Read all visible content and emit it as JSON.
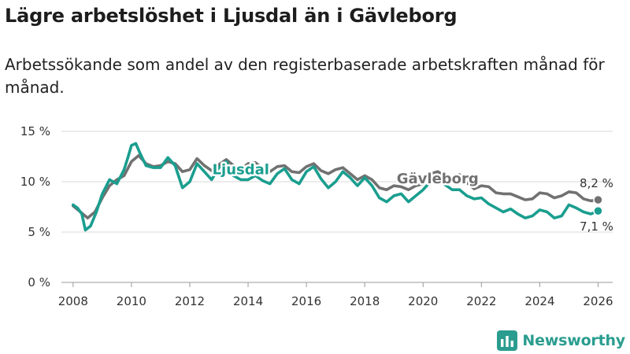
{
  "chart_data": {
    "type": "line",
    "title": "Lägre arbetslöshet i Ljusdal än i Gävleborg",
    "subtitle": "Arbetssökande som andel av den registerbaserade arbetskraften månad för månad.",
    "xlabel": "",
    "ylabel": "",
    "xlim": [
      2007.6,
      2026.5
    ],
    "ylim": [
      0,
      15
    ],
    "yticks": [
      {
        "value": 0,
        "label": "0 %"
      },
      {
        "value": 5,
        "label": "5 %"
      },
      {
        "value": 10,
        "label": "10 %"
      },
      {
        "value": 15,
        "label": "15 %"
      }
    ],
    "xticks": [
      {
        "value": 2008,
        "label": "2008"
      },
      {
        "value": 2010,
        "label": "2010"
      },
      {
        "value": 2012,
        "label": "2012"
      },
      {
        "value": 2014,
        "label": "2014"
      },
      {
        "value": 2016,
        "label": "2016"
      },
      {
        "value": 2018,
        "label": "2018"
      },
      {
        "value": 2020,
        "label": "2020"
      },
      {
        "value": 2022,
        "label": "2022"
      },
      {
        "value": 2024,
        "label": "2024"
      },
      {
        "value": 2026,
        "label": "2026"
      }
    ],
    "grid": true,
    "series": [
      {
        "name": "Gävleborg",
        "color": "#717171",
        "end_label": "8,2 %",
        "points": [
          [
            2008.0,
            7.6
          ],
          [
            2008.25,
            7.0
          ],
          [
            2008.5,
            6.4
          ],
          [
            2008.75,
            7.0
          ],
          [
            2009.0,
            8.4
          ],
          [
            2009.25,
            9.6
          ],
          [
            2009.5,
            10.2
          ],
          [
            2009.75,
            10.6
          ],
          [
            2010.0,
            12.0
          ],
          [
            2010.25,
            12.6
          ],
          [
            2010.5,
            11.8
          ],
          [
            2010.75,
            11.5
          ],
          [
            2011.0,
            11.6
          ],
          [
            2011.25,
            12.0
          ],
          [
            2011.5,
            11.8
          ],
          [
            2011.75,
            11.0
          ],
          [
            2012.0,
            11.2
          ],
          [
            2012.25,
            12.3
          ],
          [
            2012.5,
            11.6
          ],
          [
            2012.75,
            11.1
          ],
          [
            2013.0,
            11.7
          ],
          [
            2013.25,
            12.2
          ],
          [
            2013.5,
            11.6
          ],
          [
            2013.75,
            11.2
          ],
          [
            2014.0,
            11.8
          ],
          [
            2014.25,
            11.9
          ],
          [
            2014.5,
            11.3
          ],
          [
            2014.75,
            11.0
          ],
          [
            2015.0,
            11.5
          ],
          [
            2015.25,
            11.6
          ],
          [
            2015.5,
            11.0
          ],
          [
            2015.75,
            10.9
          ],
          [
            2016.0,
            11.5
          ],
          [
            2016.25,
            11.8
          ],
          [
            2016.5,
            11.1
          ],
          [
            2016.75,
            10.8
          ],
          [
            2017.0,
            11.2
          ],
          [
            2017.25,
            11.4
          ],
          [
            2017.5,
            10.8
          ],
          [
            2017.75,
            10.2
          ],
          [
            2018.0,
            10.6
          ],
          [
            2018.25,
            10.2
          ],
          [
            2018.5,
            9.4
          ],
          [
            2018.75,
            9.2
          ],
          [
            2019.0,
            9.6
          ],
          [
            2019.25,
            9.5
          ],
          [
            2019.5,
            9.2
          ],
          [
            2019.75,
            9.6
          ],
          [
            2020.0,
            9.8
          ],
          [
            2020.25,
            10.8
          ],
          [
            2020.5,
            11.0
          ],
          [
            2020.75,
            10.6
          ],
          [
            2021.0,
            10.4
          ],
          [
            2021.25,
            10.7
          ],
          [
            2021.5,
            9.9
          ],
          [
            2021.75,
            9.3
          ],
          [
            2022.0,
            9.6
          ],
          [
            2022.25,
            9.5
          ],
          [
            2022.5,
            8.9
          ],
          [
            2022.75,
            8.8
          ],
          [
            2023.0,
            8.8
          ],
          [
            2023.25,
            8.5
          ],
          [
            2023.5,
            8.2
          ],
          [
            2023.75,
            8.3
          ],
          [
            2024.0,
            8.9
          ],
          [
            2024.25,
            8.8
          ],
          [
            2024.5,
            8.4
          ],
          [
            2024.75,
            8.6
          ],
          [
            2025.0,
            9.0
          ],
          [
            2025.25,
            8.9
          ],
          [
            2025.5,
            8.3
          ],
          [
            2025.75,
            8.1
          ],
          [
            2026.0,
            8.2
          ]
        ]
      },
      {
        "name": "Ljusdal",
        "color": "#1a9e8f",
        "end_label": "7,1 %",
        "points": [
          [
            2008.0,
            7.7
          ],
          [
            2008.15,
            7.4
          ],
          [
            2008.3,
            6.8
          ],
          [
            2008.42,
            5.2
          ],
          [
            2008.6,
            5.6
          ],
          [
            2008.8,
            7.0
          ],
          [
            2009.0,
            8.8
          ],
          [
            2009.25,
            10.2
          ],
          [
            2009.5,
            9.8
          ],
          [
            2009.75,
            11.2
          ],
          [
            2009.9,
            12.6
          ],
          [
            2010.0,
            13.6
          ],
          [
            2010.15,
            13.8
          ],
          [
            2010.3,
            12.8
          ],
          [
            2010.5,
            11.6
          ],
          [
            2010.75,
            11.4
          ],
          [
            2011.0,
            11.4
          ],
          [
            2011.25,
            12.4
          ],
          [
            2011.5,
            11.6
          ],
          [
            2011.75,
            9.4
          ],
          [
            2012.0,
            10.0
          ],
          [
            2012.25,
            11.8
          ],
          [
            2012.5,
            11.0
          ],
          [
            2012.75,
            10.2
          ],
          [
            2013.0,
            11.4
          ],
          [
            2013.25,
            12.0
          ],
          [
            2013.5,
            10.6
          ],
          [
            2013.75,
            10.2
          ],
          [
            2014.0,
            10.2
          ],
          [
            2014.25,
            10.6
          ],
          [
            2014.5,
            10.1
          ],
          [
            2014.75,
            9.8
          ],
          [
            2015.0,
            10.8
          ],
          [
            2015.25,
            11.3
          ],
          [
            2015.5,
            10.2
          ],
          [
            2015.75,
            9.8
          ],
          [
            2016.0,
            11.0
          ],
          [
            2016.25,
            11.5
          ],
          [
            2016.5,
            10.3
          ],
          [
            2016.75,
            9.4
          ],
          [
            2017.0,
            10.0
          ],
          [
            2017.25,
            11.0
          ],
          [
            2017.5,
            10.4
          ],
          [
            2017.75,
            9.6
          ],
          [
            2018.0,
            10.4
          ],
          [
            2018.25,
            9.6
          ],
          [
            2018.5,
            8.4
          ],
          [
            2018.75,
            8.0
          ],
          [
            2019.0,
            8.6
          ],
          [
            2019.25,
            8.8
          ],
          [
            2019.5,
            8.0
          ],
          [
            2019.75,
            8.6
          ],
          [
            2020.0,
            9.2
          ],
          [
            2020.25,
            10.0
          ],
          [
            2020.5,
            10.3
          ],
          [
            2020.75,
            9.7
          ],
          [
            2021.0,
            9.2
          ],
          [
            2021.25,
            9.2
          ],
          [
            2021.5,
            8.6
          ],
          [
            2021.75,
            8.3
          ],
          [
            2022.0,
            8.4
          ],
          [
            2022.25,
            7.8
          ],
          [
            2022.5,
            7.4
          ],
          [
            2022.75,
            7.0
          ],
          [
            2023.0,
            7.3
          ],
          [
            2023.25,
            6.8
          ],
          [
            2023.5,
            6.4
          ],
          [
            2023.75,
            6.6
          ],
          [
            2024.0,
            7.2
          ],
          [
            2024.25,
            7.0
          ],
          [
            2024.5,
            6.4
          ],
          [
            2024.75,
            6.6
          ],
          [
            2025.0,
            7.7
          ],
          [
            2025.25,
            7.4
          ],
          [
            2025.5,
            7.0
          ],
          [
            2025.75,
            6.8
          ],
          [
            2026.0,
            7.1
          ]
        ]
      }
    ],
    "annotations": [
      {
        "series": "Ljusdal",
        "text": "Ljusdal",
        "x": 2013.75,
        "y": 11.2
      },
      {
        "series": "Gävleborg",
        "text": "Gävleborg",
        "x": 2020.5,
        "y": 10.3
      }
    ]
  },
  "source_brand": {
    "name": "Newsworthy",
    "icon": "bar-chart-logo-icon",
    "color": "#2a9d8f"
  }
}
